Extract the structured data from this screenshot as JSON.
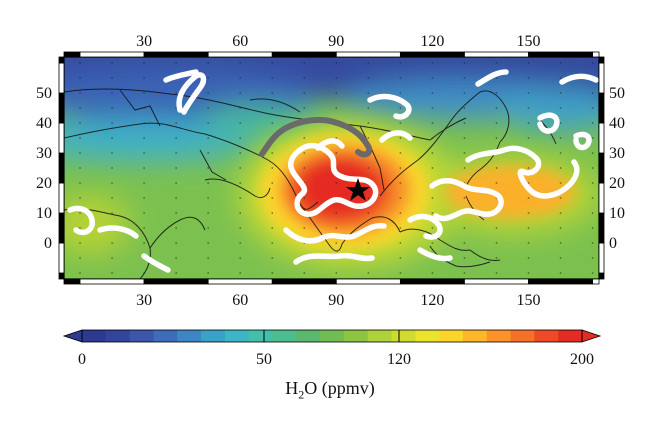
{
  "map": {
    "lon_ticks": [
      30,
      60,
      90,
      120,
      150
    ],
    "lat_ticks": [
      50,
      40,
      30,
      20,
      10,
      0
    ],
    "lon_range": [
      5,
      172
    ],
    "lat_range": [
      -12,
      62
    ]
  },
  "colorbar": {
    "tick_labels": [
      "0",
      "50",
      "120",
      "200"
    ],
    "title_main": "H",
    "title_sub": "2",
    "title_rest": "O (ppmv)",
    "colors": [
      "#2e3a8f",
      "#33449c",
      "#3a55ab",
      "#3e6cba",
      "#3d86c4",
      "#3aa1c9",
      "#3cb6c4",
      "#43c0ab",
      "#4cbd8e",
      "#5bb86f",
      "#72bd53",
      "#8dc540",
      "#aed237",
      "#cfdc2f",
      "#ece42a",
      "#fbd52a",
      "#fdb62a",
      "#fb9329",
      "#f67028",
      "#ee4a26",
      "#e42b24"
    ]
  }
}
